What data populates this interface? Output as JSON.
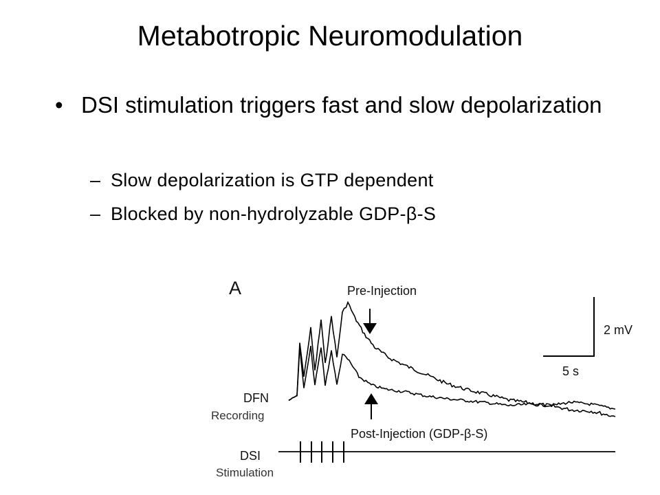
{
  "slide": {
    "title": "Metabotropic Neuromodulation",
    "bullet_marker": "•",
    "bullet": "DSI stimulation triggers fast and slow depolarization",
    "sub_marker": "–",
    "sub_bullets": [
      "Slow depolarization is GTP dependent",
      "Blocked by non-hydrolyzable GDP-β-S"
    ]
  },
  "figure": {
    "panel": "A",
    "pre_label": "Pre-Injection",
    "post_label": "Post-Injection (GDP-β-S)",
    "scale_v": "2 mV",
    "scale_t": "5 s",
    "dfn": "DFN",
    "dsi": "DSI",
    "recording": "Recording",
    "stimulation": "Stimulation",
    "trace_color": "#000000"
  }
}
